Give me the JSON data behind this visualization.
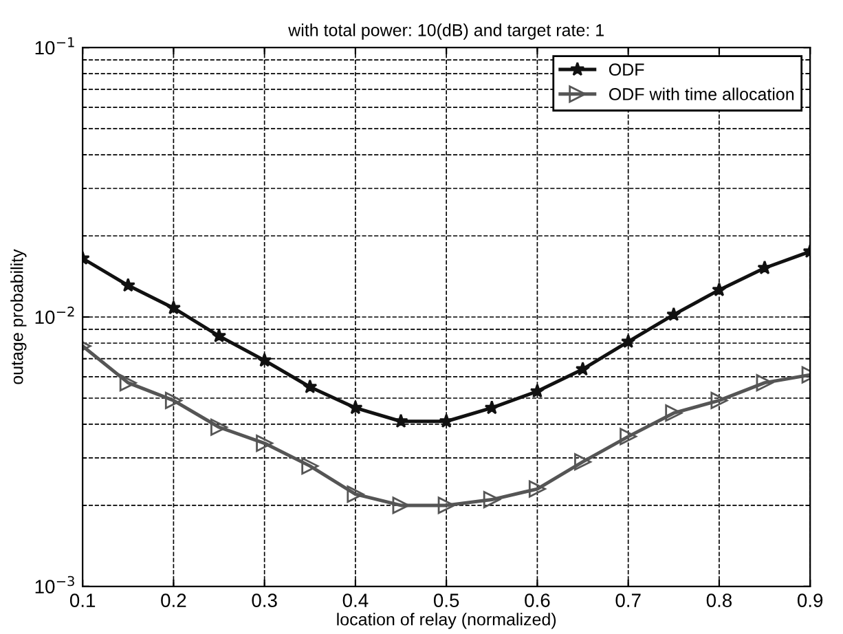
{
  "chart_data": {
    "type": "line",
    "title": "with total power: 10(dB) and target rate: 1",
    "xlabel": "location of relay (normalized)",
    "ylabel": "outage probability",
    "x": [
      0.1,
      0.15,
      0.2,
      0.25,
      0.3,
      0.35,
      0.4,
      0.45,
      0.5,
      0.55,
      0.6,
      0.65,
      0.7,
      0.75,
      0.8,
      0.85,
      0.9
    ],
    "series": [
      {
        "name": "ODF",
        "color": "#111111",
        "marker": "star",
        "values": [
          0.0165,
          0.0131,
          0.0108,
          0.0085,
          0.0069,
          0.0055,
          0.0046,
          0.0041,
          0.0041,
          0.0046,
          0.0053,
          0.0064,
          0.0081,
          0.0102,
          0.0126,
          0.0152,
          0.0175
        ]
      },
      {
        "name": "ODF with time allocation",
        "color": "#555555",
        "marker": "triangle",
        "values": [
          0.0078,
          0.0057,
          0.0049,
          0.0039,
          0.0034,
          0.0028,
          0.0022,
          0.002,
          0.002,
          0.0021,
          0.0023,
          0.0029,
          0.0036,
          0.0044,
          0.0049,
          0.0057,
          0.0061
        ]
      }
    ],
    "log": "y",
    "xlim": [
      0.1,
      0.9
    ],
    "xticks": [
      0.1,
      0.2,
      0.3,
      0.4,
      0.5,
      0.6,
      0.7,
      0.8,
      0.9
    ],
    "ylim": [
      0.001,
      0.1
    ],
    "yticks": [
      {
        "value": 0.001,
        "label": "10$^{−3}$"
      },
      {
        "value": 0.01,
        "label": "10$^{−2}$"
      },
      {
        "value": 0.1,
        "label": "10$^{−1}$"
      }
    ],
    "grid": true,
    "legend": "top right",
    "line_style": "solid"
  }
}
